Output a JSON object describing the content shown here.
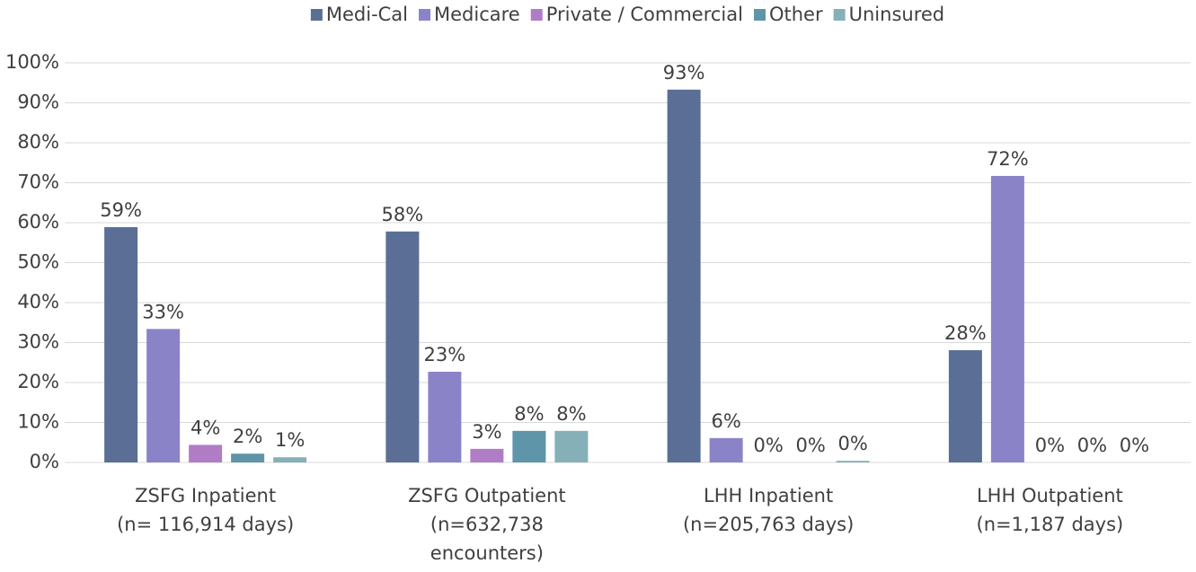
{
  "chart_data": {
    "type": "bar",
    "categories": [
      [
        "ZSFG Inpatient",
        "(n= 116,914 days)"
      ],
      [
        "ZSFG Outpatient",
        "(n=632,738",
        "encounters)"
      ],
      [
        "LHH Inpatient",
        "(n=205,763 days)"
      ],
      [
        "LHH Outpatient",
        "(n=1,187 days)"
      ]
    ],
    "series": [
      {
        "name": "Medi-Cal",
        "color": "#5b6f96",
        "values": [
          58.9,
          57.8,
          93.3,
          28.1
        ],
        "value_labels": [
          "59%",
          "58%",
          "93%",
          "28%"
        ]
      },
      {
        "name": "Medicare",
        "color": "#8b83c8",
        "values": [
          33.4,
          22.7,
          6.1,
          71.7
        ],
        "value_labels": [
          "33%",
          "23%",
          "6%",
          "72%"
        ]
      },
      {
        "name": "Private / Commercial",
        "color": "#b07cc6",
        "values": [
          4.4,
          3.4,
          0,
          0
        ],
        "value_labels": [
          "4%",
          "3%",
          "0%",
          "0%"
        ]
      },
      {
        "name": "Other",
        "color": "#5f95a8",
        "values": [
          2.2,
          7.9,
          0,
          0
        ],
        "value_labels": [
          "2%",
          "8%",
          "0%",
          "0%"
        ]
      },
      {
        "name": "Uninsured",
        "color": "#86b0b8",
        "values": [
          1.3,
          7.9,
          0.4,
          0
        ],
        "value_labels": [
          "1%",
          "8%",
          "0%",
          "0%"
        ]
      }
    ],
    "ylim": [
      0,
      100
    ],
    "yticks": [
      {
        "value": 0,
        "label": "0%"
      },
      {
        "value": 10,
        "label": "10%"
      },
      {
        "value": 20,
        "label": "20%"
      },
      {
        "value": 30,
        "label": "30%"
      },
      {
        "value": 40,
        "label": "40%"
      },
      {
        "value": 50,
        "label": "50%"
      },
      {
        "value": 60,
        "label": "60%"
      },
      {
        "value": 70,
        "label": "70%"
      },
      {
        "value": 80,
        "label": "80%"
      },
      {
        "value": 90,
        "label": "90%"
      },
      {
        "value": 100,
        "label": "100%"
      }
    ],
    "grid": true,
    "legend": "top"
  }
}
